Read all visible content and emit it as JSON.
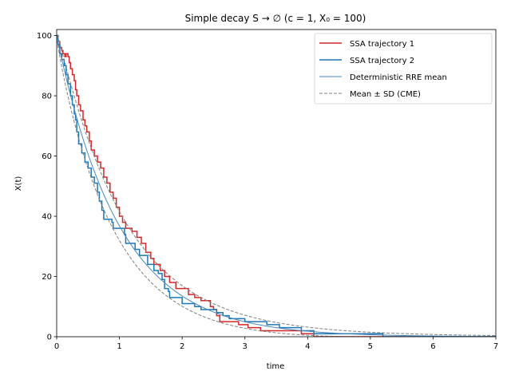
{
  "chart_data": {
    "type": "line",
    "title": "Simple decay  S → ∅  (c = 1,  X₀ = 100)",
    "xlabel": "time",
    "ylabel": "X(t)",
    "xlim": [
      0,
      7
    ],
    "ylim": [
      0,
      102
    ],
    "xticks": [
      "0",
      "1",
      "2",
      "3",
      "4",
      "5",
      "6",
      "7"
    ],
    "yticks": [
      "0",
      "20",
      "40",
      "60",
      "80",
      "100"
    ],
    "legend_position": "top-right",
    "grid": false,
    "x0": 100,
    "rate": 1,
    "series": [
      {
        "name": "SSA trajectory 1",
        "type": "step",
        "color": "#d62728",
        "points": [
          [
            0,
            100
          ],
          [
            0.02,
            98
          ],
          [
            0.05,
            96
          ],
          [
            0.08,
            95
          ],
          [
            0.1,
            94
          ],
          [
            0.13,
            93
          ],
          [
            0.15,
            94
          ],
          [
            0.18,
            93
          ],
          [
            0.2,
            91
          ],
          [
            0.22,
            89
          ],
          [
            0.25,
            87
          ],
          [
            0.28,
            85
          ],
          [
            0.3,
            82
          ],
          [
            0.32,
            80
          ],
          [
            0.35,
            77
          ],
          [
            0.38,
            75
          ],
          [
            0.42,
            72
          ],
          [
            0.45,
            70
          ],
          [
            0.48,
            68
          ],
          [
            0.52,
            65
          ],
          [
            0.55,
            62
          ],
          [
            0.6,
            60
          ],
          [
            0.65,
            58
          ],
          [
            0.7,
            56
          ],
          [
            0.75,
            53
          ],
          [
            0.8,
            51
          ],
          [
            0.85,
            48
          ],
          [
            0.9,
            46
          ],
          [
            0.95,
            43
          ],
          [
            1.0,
            40
          ],
          [
            1.05,
            38
          ],
          [
            1.1,
            36
          ],
          [
            1.2,
            35
          ],
          [
            1.28,
            33
          ],
          [
            1.35,
            31
          ],
          [
            1.42,
            28
          ],
          [
            1.5,
            26
          ],
          [
            1.55,
            24
          ],
          [
            1.65,
            22
          ],
          [
            1.72,
            20
          ],
          [
            1.8,
            18
          ],
          [
            1.9,
            16
          ],
          [
            2.1,
            14
          ],
          [
            2.2,
            13
          ],
          [
            2.3,
            12
          ],
          [
            2.45,
            10
          ],
          [
            2.5,
            9
          ],
          [
            2.55,
            7
          ],
          [
            2.6,
            5
          ],
          [
            2.9,
            4
          ],
          [
            3.05,
            3
          ],
          [
            3.25,
            2
          ],
          [
            3.6,
            2
          ],
          [
            3.9,
            1
          ],
          [
            4.1,
            0
          ],
          [
            7.0,
            0
          ]
        ]
      },
      {
        "name": "SSA trajectory 2",
        "type": "step",
        "color": "#1f77b4",
        "points": [
          [
            0,
            100
          ],
          [
            0.02,
            97
          ],
          [
            0.05,
            94
          ],
          [
            0.08,
            92
          ],
          [
            0.12,
            90
          ],
          [
            0.15,
            87
          ],
          [
            0.18,
            84
          ],
          [
            0.22,
            80
          ],
          [
            0.25,
            77
          ],
          [
            0.28,
            74
          ],
          [
            0.3,
            72
          ],
          [
            0.32,
            68
          ],
          [
            0.35,
            64
          ],
          [
            0.4,
            61
          ],
          [
            0.45,
            58
          ],
          [
            0.5,
            56
          ],
          [
            0.55,
            53
          ],
          [
            0.6,
            51
          ],
          [
            0.65,
            48
          ],
          [
            0.68,
            45
          ],
          [
            0.72,
            42
          ],
          [
            0.75,
            39
          ],
          [
            0.88,
            38
          ],
          [
            0.9,
            36
          ],
          [
            1.08,
            34
          ],
          [
            1.1,
            31
          ],
          [
            1.25,
            29
          ],
          [
            1.32,
            27
          ],
          [
            1.45,
            24
          ],
          [
            1.55,
            22
          ],
          [
            1.62,
            21
          ],
          [
            1.68,
            19
          ],
          [
            1.72,
            16
          ],
          [
            1.78,
            15
          ],
          [
            1.8,
            13
          ],
          [
            2.0,
            11
          ],
          [
            2.2,
            10
          ],
          [
            2.3,
            9
          ],
          [
            2.55,
            8
          ],
          [
            2.65,
            7
          ],
          [
            2.75,
            6
          ],
          [
            3.0,
            5
          ],
          [
            3.35,
            4
          ],
          [
            3.55,
            3
          ],
          [
            3.9,
            2
          ],
          [
            4.1,
            1
          ],
          [
            5.2,
            0
          ],
          [
            7.0,
            0
          ]
        ]
      },
      {
        "name": "Deterministic RRE mean",
        "type": "function",
        "formula": "100*exp(-t)",
        "color": "#4a86b8"
      },
      {
        "name": "Mean ± SD (CME)",
        "type": "function",
        "formula": "100*exp(-t) ± sqrt(100*exp(-t)*(1-exp(-t)))",
        "color": "#7f7f7f",
        "dashed": true
      }
    ]
  }
}
